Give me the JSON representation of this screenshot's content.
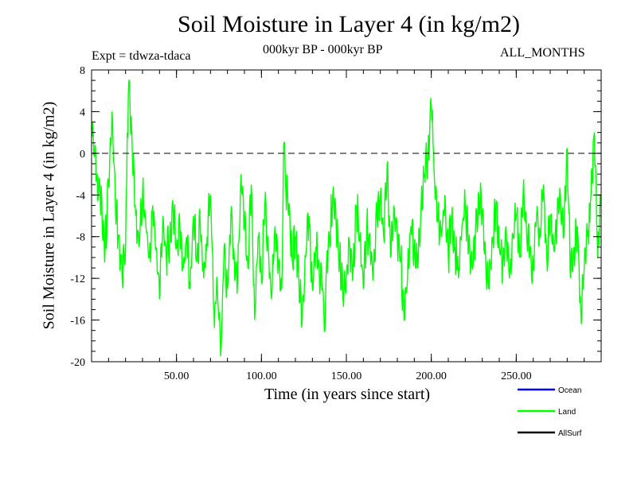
{
  "chart_data": {
    "type": "line",
    "title": "Soil Moisture in Layer 4 (in kg/m2)",
    "subtitle": "000kyr BP - 000kyr BP",
    "experiment": "Expt = tdwza-tdaca",
    "period": "ALL_MONTHS",
    "xlabel": "Time (in years since start)",
    "ylabel": "Soil Moisture in Layer 4 (in kg/m2)",
    "xlim": [
      0,
      300
    ],
    "ylim": [
      -20,
      8
    ],
    "xticks": [
      50,
      100,
      150,
      200,
      250
    ],
    "xtick_labels": [
      "50.00",
      "100.00",
      "150.00",
      "200.00",
      "250.00"
    ],
    "yticks": [
      8,
      4,
      0,
      -4,
      -8,
      -12,
      -16,
      -20
    ],
    "ytick_labels": [
      "8",
      "4",
      "0",
      "-4",
      "-8",
      "-12",
      "-16",
      "-20"
    ],
    "reference_line": 0,
    "legend_position": "bottom-right",
    "legend": [
      {
        "name": "Ocean",
        "color": "#0000ff"
      },
      {
        "name": "Land",
        "color": "#00ff00"
      },
      {
        "name": "AllSurf",
        "color": "#000000"
      }
    ],
    "series": [
      {
        "name": "Land",
        "color": "#00ff00",
        "x": [
          0,
          3,
          5,
          8,
          10,
          12,
          14,
          16,
          18,
          20,
          21,
          22,
          24,
          26,
          28,
          30,
          32,
          34,
          36,
          38,
          40,
          42,
          44,
          46,
          48,
          50,
          52,
          54,
          56,
          58,
          60,
          62,
          64,
          66,
          68,
          70,
          72,
          74,
          75,
          76,
          78,
          80,
          82,
          84,
          86,
          88,
          90,
          92,
          94,
          96,
          98,
          100,
          102,
          104,
          106,
          108,
          110,
          112,
          113,
          114,
          116,
          118,
          120,
          122,
          124,
          126,
          128,
          130,
          132,
          134,
          136,
          137,
          138,
          140,
          142,
          144,
          146,
          148,
          150,
          152,
          154,
          156,
          158,
          160,
          162,
          164,
          166,
          168,
          170,
          172,
          174,
          176,
          178,
          180,
          182,
          184,
          186,
          188,
          190,
          192,
          194,
          196,
          198,
          200,
          201,
          202,
          204,
          206,
          208,
          210,
          212,
          214,
          216,
          218,
          220,
          222,
          224,
          226,
          228,
          230,
          232,
          234,
          236,
          238,
          240,
          242,
          244,
          246,
          248,
          250,
          252,
          254,
          256,
          258,
          260,
          262,
          264,
          266,
          268,
          270,
          272,
          274,
          276,
          278,
          280,
          282,
          284,
          286,
          288,
          290,
          292,
          294,
          296,
          298,
          300
        ],
        "values": [
          2.5,
          -2,
          -4,
          -9,
          -3,
          4,
          -5,
          -8,
          -12,
          -9,
          2,
          7,
          0,
          -6,
          -9,
          -4,
          -7,
          -10,
          -5,
          -9,
          -14,
          -6,
          -10,
          -8,
          -5,
          -9,
          -7,
          -11,
          -8,
          -13,
          -6,
          -10,
          -7,
          -12,
          -8,
          -4,
          -15,
          -13,
          -16,
          -19.5,
          -9,
          -13,
          -6,
          -10,
          -12,
          -2,
          -7,
          -11,
          -3,
          -16,
          -8,
          -12,
          -5,
          -9,
          -14,
          -7,
          -11,
          -13,
          0.5,
          -2,
          -6,
          -10,
          -8,
          -12,
          -16,
          -10,
          -6,
          -13,
          -9,
          -11,
          -13,
          -17,
          -12,
          -8,
          -4,
          -7,
          -10,
          -14,
          -12,
          -9,
          -11,
          -5,
          -8,
          -13,
          -7,
          -9,
          -11,
          -6,
          -4,
          -8,
          -1,
          -10,
          -5,
          -8,
          -10,
          -16,
          -12,
          -7,
          -9,
          -11,
          -5,
          -2,
          0,
          4.5,
          1,
          -3,
          -6,
          -8,
          -4,
          -10,
          -6,
          -9,
          -12,
          -7,
          -5,
          -9,
          -11,
          -8,
          -4,
          -6,
          -10,
          -13,
          -8,
          -5,
          -9,
          -11,
          -7,
          -12,
          -8,
          -6,
          -10,
          -4,
          -7,
          -9,
          -11,
          -6,
          -8,
          -3,
          -10,
          -6,
          -9,
          -7,
          -4,
          -8,
          0.5,
          -12,
          -9,
          -7,
          -15,
          -11,
          -8,
          -4,
          2,
          -10,
          -4
        ]
      }
    ]
  }
}
